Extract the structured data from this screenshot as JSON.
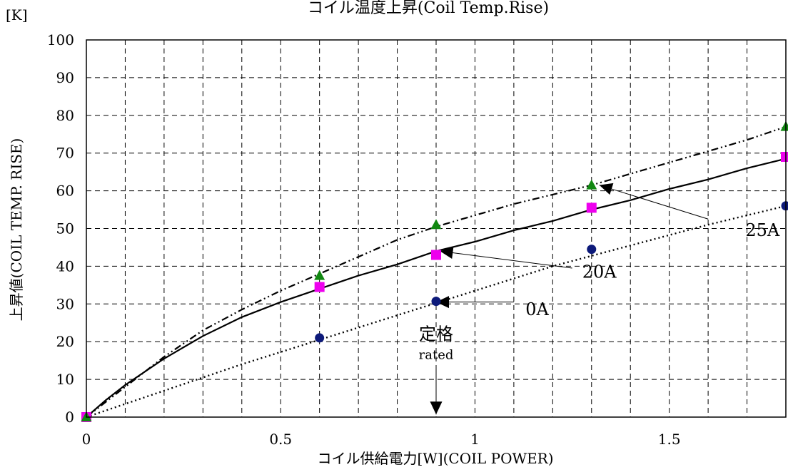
{
  "chart_data": {
    "type": "scatter",
    "title": "コイル温度上昇(Coil Temp.Rise)",
    "xlabel": "コイル供給電力[W](COIL POWER)",
    "ylabel": "上昇値(COIL TEMP. RISE)",
    "yunit": "[K]",
    "xlim": [
      0,
      1.8
    ],
    "ylim": [
      0,
      100
    ],
    "xticks": [
      0,
      0.1,
      0.2,
      0.3,
      0.4,
      0.5,
      0.6,
      0.7,
      0.8,
      0.9,
      1.0,
      1.1,
      1.2,
      1.3,
      1.4,
      1.5,
      1.6,
      1.7,
      1.8
    ],
    "xtick_labels": [
      {
        "x": 0,
        "label": "0"
      },
      {
        "x": 0.5,
        "label": "0.5"
      },
      {
        "x": 1.0,
        "label": "1"
      },
      {
        "x": 1.5,
        "label": "1.5"
      }
    ],
    "yticks": [
      0,
      10,
      20,
      30,
      40,
      50,
      60,
      70,
      80,
      90,
      100
    ],
    "ytick_labels": [
      "0",
      "10",
      "20",
      "30",
      "40",
      "50",
      "60",
      "70",
      "80",
      "90",
      "100"
    ],
    "grid": true,
    "series": [
      {
        "name": "0A",
        "marker": "circle",
        "color": "#0d1a7a",
        "line_style": "dotted",
        "x": [
          0,
          0.6,
          0.9,
          1.3,
          1.8
        ],
        "y": [
          0,
          21,
          30.7,
          44.5,
          56
        ],
        "fit": [
          [
            0,
            0
          ],
          [
            0.2,
            7
          ],
          [
            0.4,
            14
          ],
          [
            0.6,
            20.5
          ],
          [
            0.8,
            27
          ],
          [
            1.0,
            33.5
          ],
          [
            1.2,
            40
          ],
          [
            1.4,
            45.5
          ],
          [
            1.6,
            51
          ],
          [
            1.8,
            56
          ]
        ]
      },
      {
        "name": "20A",
        "marker": "square",
        "color": "#ee00ee",
        "line_style": "solid",
        "x": [
          0,
          0.6,
          0.9,
          1.3,
          1.8
        ],
        "y": [
          0,
          34.5,
          43,
          55.5,
          69
        ],
        "fit": [
          [
            0,
            0
          ],
          [
            0.05,
            4.5
          ],
          [
            0.1,
            8.5
          ],
          [
            0.2,
            15.5
          ],
          [
            0.3,
            21.5
          ],
          [
            0.4,
            26.5
          ],
          [
            0.5,
            30.5
          ],
          [
            0.6,
            34
          ],
          [
            0.7,
            37.5
          ],
          [
            0.8,
            40.5
          ],
          [
            0.9,
            44
          ],
          [
            1.0,
            46.5
          ],
          [
            1.1,
            49.5
          ],
          [
            1.2,
            52
          ],
          [
            1.3,
            55
          ],
          [
            1.4,
            57.5
          ],
          [
            1.5,
            60.5
          ],
          [
            1.6,
            63
          ],
          [
            1.7,
            66
          ],
          [
            1.8,
            68.5
          ]
        ]
      },
      {
        "name": "25A",
        "marker": "triangle",
        "color": "#118811",
        "line_style": "dashdotdot",
        "x": [
          0,
          0.6,
          0.9,
          1.3,
          1.8
        ],
        "y": [
          0,
          37.5,
          51,
          61.5,
          77
        ],
        "fit": [
          [
            0,
            0
          ],
          [
            0.05,
            4
          ],
          [
            0.1,
            8
          ],
          [
            0.2,
            16
          ],
          [
            0.3,
            23
          ],
          [
            0.4,
            28.5
          ],
          [
            0.5,
            33.5
          ],
          [
            0.6,
            38
          ],
          [
            0.7,
            42.5
          ],
          [
            0.8,
            47
          ],
          [
            0.9,
            50.5
          ],
          [
            1.0,
            53.5
          ],
          [
            1.1,
            56.5
          ],
          [
            1.2,
            59
          ],
          [
            1.3,
            61.5
          ],
          [
            1.4,
            64.5
          ],
          [
            1.5,
            67.5
          ],
          [
            1.6,
            70.5
          ],
          [
            1.7,
            73.5
          ],
          [
            1.8,
            77
          ]
        ]
      }
    ],
    "annotations": [
      {
        "label": "25A",
        "text_x": 1.74,
        "text_y": 49.5,
        "arrow_from": [
          1.6,
          52.5
        ],
        "arrow_to": [
          1.32,
          61.5
        ]
      },
      {
        "label": "20A",
        "text_x": 1.32,
        "text_y": 38.5,
        "arrow_from": [
          1.25,
          39.5
        ],
        "arrow_to": [
          0.91,
          44
        ]
      },
      {
        "label": "0A",
        "text_x": 1.16,
        "text_y": 28.5,
        "arrow_from": [
          1.1,
          30.5
        ],
        "arrow_to": [
          0.9,
          30.5
        ]
      }
    ],
    "rated": {
      "label_jp": "定格",
      "label_en": "rated",
      "x": 0.9,
      "label_y": 22,
      "sublabel_y": 16.5,
      "arrow_from_y": 13,
      "arrow_to_y": 0.7
    }
  }
}
